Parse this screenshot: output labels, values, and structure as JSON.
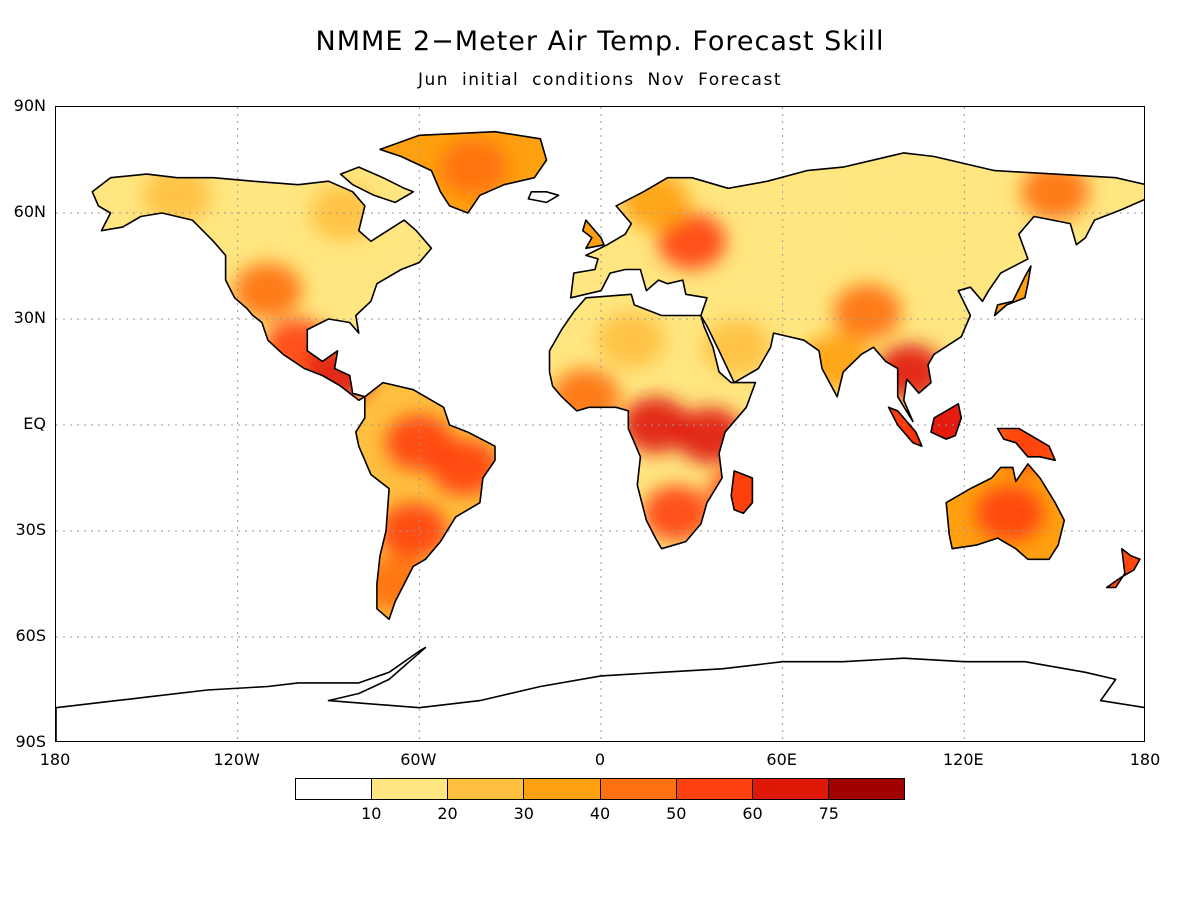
{
  "title": "NMME 2−Meter Air Temp. Forecast Skill",
  "subtitle": "Jun initial conditions   Nov Forecast",
  "map": {
    "projection": "equirectangular",
    "lon_range": [
      -180,
      180
    ],
    "lat_range": [
      -90,
      90
    ],
    "lat_ticks": [
      {
        "value": 90,
        "label": "90N"
      },
      {
        "value": 60,
        "label": "60N"
      },
      {
        "value": 30,
        "label": "30N"
      },
      {
        "value": 0,
        "label": "EQ"
      },
      {
        "value": -30,
        "label": "30S"
      },
      {
        "value": -60,
        "label": "60S"
      },
      {
        "value": -90,
        "label": "90S"
      }
    ],
    "lon_ticks": [
      {
        "value": -180,
        "label": "180"
      },
      {
        "value": -120,
        "label": "120W"
      },
      {
        "value": -60,
        "label": "60W"
      },
      {
        "value": 0,
        "label": "0"
      },
      {
        "value": 60,
        "label": "60E"
      },
      {
        "value": 120,
        "label": "120E"
      },
      {
        "value": 180,
        "label": "180"
      }
    ],
    "grid": "dotted",
    "skill_regions": [
      {
        "region": "Greenland",
        "lon": -42,
        "lat": 73,
        "level": 4
      },
      {
        "region": "Alaska / NW Canada",
        "lon": -140,
        "lat": 65,
        "level": 2
      },
      {
        "region": "Hudson Bay",
        "lon": -85,
        "lat": 60,
        "level": 2
      },
      {
        "region": "Western USA",
        "lon": -110,
        "lat": 38,
        "level": 4
      },
      {
        "region": "Mexico",
        "lon": -100,
        "lat": 22,
        "level": 5
      },
      {
        "region": "Central America",
        "lon": -87,
        "lat": 14,
        "level": 6
      },
      {
        "region": "Amazon",
        "lon": -60,
        "lat": -5,
        "level": 5
      },
      {
        "region": "Brazil Highlands",
        "lon": -45,
        "lat": -12,
        "level": 5
      },
      {
        "region": "Southern South America",
        "lon": -62,
        "lat": -30,
        "level": 5
      },
      {
        "region": "Patagonia",
        "lon": -68,
        "lat": -45,
        "level": 4
      },
      {
        "region": "Eastern Europe",
        "lon": 30,
        "lat": 52,
        "level": 5
      },
      {
        "region": "Scandinavia",
        "lon": 18,
        "lat": 63,
        "level": 3
      },
      {
        "region": "Sahara",
        "lon": 10,
        "lat": 24,
        "level": 2
      },
      {
        "region": "Arabia",
        "lon": 45,
        "lat": 22,
        "level": 2
      },
      {
        "region": "West Africa",
        "lon": -5,
        "lat": 8,
        "level": 4
      },
      {
        "region": "Central Africa",
        "lon": 18,
        "lat": 0,
        "level": 6
      },
      {
        "region": "East Africa",
        "lon": 36,
        "lat": -3,
        "level": 6
      },
      {
        "region": "Southern Africa",
        "lon": 25,
        "lat": -25,
        "level": 5
      },
      {
        "region": "Madagascar",
        "lon": 47,
        "lat": -19,
        "level": 5
      },
      {
        "region": "India",
        "lon": 78,
        "lat": 18,
        "level": 3
      },
      {
        "region": "Tibet",
        "lon": 88,
        "lat": 32,
        "level": 4
      },
      {
        "region": "Southeast Asia",
        "lon": 102,
        "lat": 15,
        "level": 6
      },
      {
        "region": "Borneo",
        "lon": 114,
        "lat": 0,
        "level": 6
      },
      {
        "region": "Northeast Siberia",
        "lon": 150,
        "lat": 66,
        "level": 4
      },
      {
        "region": "Central Siberia",
        "lon": 100,
        "lat": 62,
        "level": 1
      },
      {
        "region": "Australia",
        "lon": 135,
        "lat": -25,
        "level": 5
      },
      {
        "region": "New Guinea",
        "lon": 142,
        "lat": -5,
        "level": 5
      },
      {
        "region": "New Zealand",
        "lon": 172,
        "lat": -41,
        "level": 5
      }
    ]
  },
  "colorbar": {
    "colors": [
      "#ffffff",
      "#ffe680",
      "#ffc040",
      "#ffa010",
      "#ff7010",
      "#ff4010",
      "#e01808",
      "#a00000"
    ],
    "tick_labels": [
      "10",
      "20",
      "30",
      "40",
      "50",
      "60",
      "75"
    ]
  }
}
